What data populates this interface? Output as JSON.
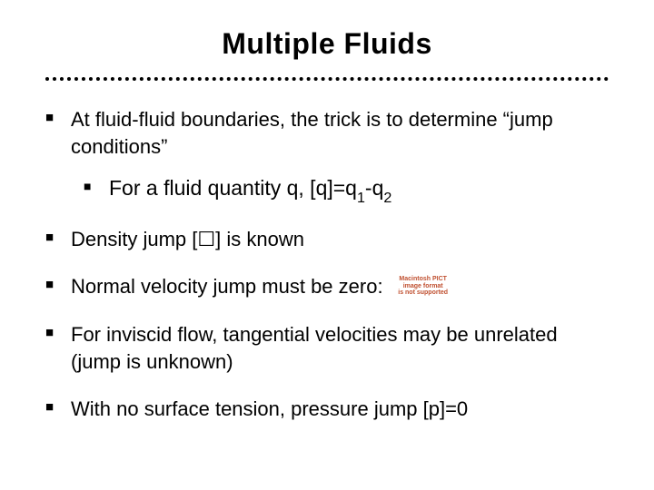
{
  "title": "Multiple Fluids",
  "bullets": [
    {
      "text": "At fluid-fluid boundaries, the trick is to determine “jump conditions”",
      "sub": [
        {
          "prefix": "For a fluid quantity q, [q]=q",
          "s1": "1",
          "mid": "-q",
          "s2": "2"
        }
      ]
    },
    {
      "prefix": "Density jump [",
      "symbol": "☐",
      "suffix": "] is known"
    },
    {
      "text": "Normal velocity jump must be zero: ",
      "missing": {
        "l1": "Macintosh PICT",
        "l2": "image format",
        "l3": "is not supported"
      }
    },
    {
      "text": "For inviscid flow, tangential velocities may be unrelated (jump is unknown)"
    },
    {
      "text": "With no surface tension, pressure jump [p]=0"
    }
  ]
}
